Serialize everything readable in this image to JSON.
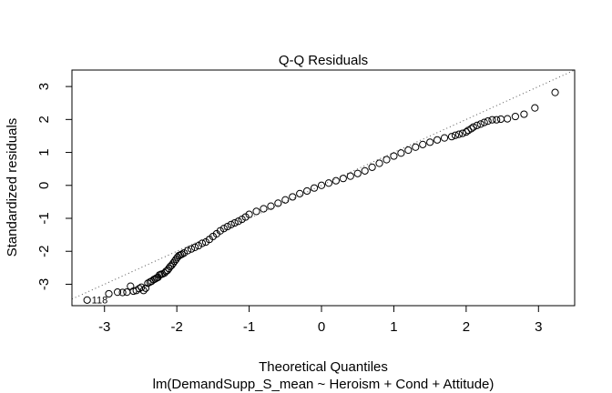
{
  "chart_data": {
    "type": "scatter",
    "title": "Q-Q Residuals",
    "xlabel": "Theoretical Quantiles",
    "ylabel": "Standardized residuals",
    "subtitle": "lm(DemandSupp_S_mean ~ Heroism + Cond + Attitude)",
    "xlim": [
      -3.45,
      3.5
    ],
    "ylim": [
      -3.65,
      3.5
    ],
    "x_ticks": [
      -3,
      -2,
      -1,
      0,
      1,
      2,
      3
    ],
    "y_ticks": [
      -3,
      -2,
      -1,
      0,
      1,
      2,
      3
    ],
    "grid": false,
    "legend": "none",
    "point_style": "open-circle",
    "reference_line": {
      "style": "dotted",
      "intercept": 0,
      "slope": 1
    },
    "outliers": [
      {
        "label": "118",
        "x": -3.24,
        "y": -3.48
      }
    ],
    "series": [
      {
        "points": [
          [
            -3.24,
            -3.48
          ],
          [
            -2.94,
            -3.29
          ],
          [
            -2.82,
            -3.24
          ],
          [
            -2.75,
            -3.25
          ],
          [
            -2.69,
            -3.24
          ],
          [
            -2.64,
            -3.06
          ],
          [
            -2.6,
            -3.21
          ],
          [
            -2.56,
            -3.19
          ],
          [
            -2.52,
            -3.13
          ],
          [
            -2.49,
            -3.09
          ],
          [
            -2.46,
            -3.19
          ],
          [
            -2.43,
            -3.12
          ],
          [
            -2.4,
            -2.97
          ],
          [
            -2.37,
            -2.93
          ],
          [
            -2.35,
            -2.91
          ],
          [
            -2.32,
            -2.86
          ],
          [
            -2.3,
            -2.84
          ],
          [
            -2.28,
            -2.81
          ],
          [
            -2.26,
            -2.79
          ],
          [
            -2.24,
            -2.72
          ],
          [
            -2.22,
            -2.7
          ],
          [
            -2.2,
            -2.69
          ],
          [
            -2.17,
            -2.66
          ],
          [
            -2.15,
            -2.61
          ],
          [
            -2.13,
            -2.58
          ],
          [
            -2.11,
            -2.52
          ],
          [
            -2.09,
            -2.46
          ],
          [
            -2.07,
            -2.42
          ],
          [
            -2.05,
            -2.36
          ],
          [
            -2.03,
            -2.3
          ],
          [
            -2.01,
            -2.24
          ],
          [
            -1.99,
            -2.18
          ],
          [
            -1.97,
            -2.13
          ],
          [
            -1.95,
            -2.11
          ],
          [
            -1.93,
            -2.09
          ],
          [
            -1.9,
            -2.05
          ],
          [
            -1.85,
            -1.98
          ],
          [
            -1.8,
            -1.93
          ],
          [
            -1.75,
            -1.88
          ],
          [
            -1.7,
            -1.83
          ],
          [
            -1.65,
            -1.76
          ],
          [
            -1.6,
            -1.72
          ],
          [
            -1.55,
            -1.64
          ],
          [
            -1.5,
            -1.55
          ],
          [
            -1.45,
            -1.47
          ],
          [
            -1.4,
            -1.38
          ],
          [
            -1.35,
            -1.31
          ],
          [
            -1.3,
            -1.25
          ],
          [
            -1.25,
            -1.19
          ],
          [
            -1.2,
            -1.14
          ],
          [
            -1.15,
            -1.09
          ],
          [
            -1.1,
            -1.03
          ],
          [
            -1.05,
            -0.96
          ],
          [
            -1.0,
            -0.88
          ],
          [
            -0.9,
            -0.79
          ],
          [
            -0.8,
            -0.71
          ],
          [
            -0.7,
            -0.63
          ],
          [
            -0.6,
            -0.54
          ],
          [
            -0.5,
            -0.44
          ],
          [
            -0.4,
            -0.35
          ],
          [
            -0.3,
            -0.25
          ],
          [
            -0.2,
            -0.17
          ],
          [
            -0.1,
            -0.08
          ],
          [
            0.0,
            0.0
          ],
          [
            0.1,
            0.07
          ],
          [
            0.2,
            0.14
          ],
          [
            0.3,
            0.21
          ],
          [
            0.4,
            0.28
          ],
          [
            0.5,
            0.36
          ],
          [
            0.6,
            0.44
          ],
          [
            0.7,
            0.55
          ],
          [
            0.8,
            0.67
          ],
          [
            0.9,
            0.78
          ],
          [
            1.0,
            0.89
          ],
          [
            1.1,
            0.98
          ],
          [
            1.2,
            1.07
          ],
          [
            1.3,
            1.16
          ],
          [
            1.4,
            1.24
          ],
          [
            1.5,
            1.31
          ],
          [
            1.6,
            1.38
          ],
          [
            1.7,
            1.44
          ],
          [
            1.8,
            1.48
          ],
          [
            1.85,
            1.52
          ],
          [
            1.9,
            1.55
          ],
          [
            1.95,
            1.58
          ],
          [
            2.0,
            1.62
          ],
          [
            2.03,
            1.67
          ],
          [
            2.07,
            1.72
          ],
          [
            2.1,
            1.77
          ],
          [
            2.15,
            1.82
          ],
          [
            2.2,
            1.86
          ],
          [
            2.25,
            1.91
          ],
          [
            2.3,
            1.95
          ],
          [
            2.36,
            1.99
          ],
          [
            2.42,
            1.99
          ],
          [
            2.48,
            2.01
          ],
          [
            2.57,
            2.02
          ],
          [
            2.68,
            2.09
          ],
          [
            2.8,
            2.16
          ],
          [
            2.95,
            2.35
          ],
          [
            3.23,
            2.82
          ]
        ]
      }
    ]
  }
}
